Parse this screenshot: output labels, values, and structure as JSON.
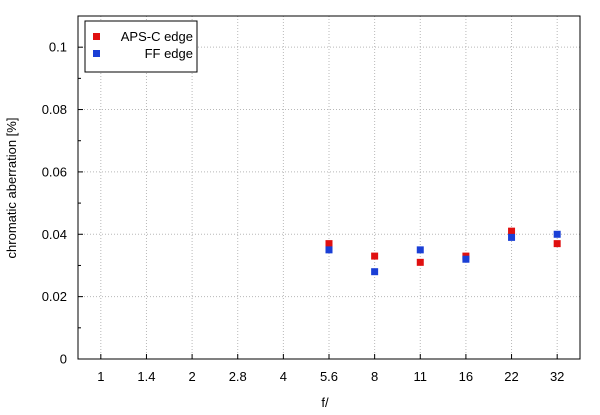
{
  "chart_data": {
    "type": "scatter",
    "title": "",
    "xlabel": "f/",
    "ylabel": "chromatic aberration [%]",
    "categories": [
      "1",
      "1.4",
      "2",
      "2.8",
      "4",
      "5.6",
      "8",
      "11",
      "16",
      "22",
      "32"
    ],
    "ylim": [
      0,
      0.11
    ],
    "yticks": [
      0,
      0.02,
      0.04,
      0.06,
      0.08,
      0.1
    ],
    "ytick_labels": [
      "0",
      "0.02",
      "0.04",
      "0.06",
      "0.08",
      "0.1"
    ],
    "grid": true,
    "legend_position": "top-left",
    "series": [
      {
        "name": "APS-C edge",
        "color": "#e01010",
        "points": [
          {
            "x": "5.6",
            "y": 0.037
          },
          {
            "x": "8",
            "y": 0.033
          },
          {
            "x": "11",
            "y": 0.031
          },
          {
            "x": "16",
            "y": 0.033
          },
          {
            "x": "22",
            "y": 0.041
          },
          {
            "x": "32",
            "y": 0.037
          }
        ]
      },
      {
        "name": "FF edge",
        "color": "#1a3fd6",
        "points": [
          {
            "x": "5.6",
            "y": 0.035
          },
          {
            "x": "8",
            "y": 0.028
          },
          {
            "x": "11",
            "y": 0.035
          },
          {
            "x": "16",
            "y": 0.032
          },
          {
            "x": "22",
            "y": 0.039
          },
          {
            "x": "32",
            "y": 0.04
          }
        ]
      }
    ]
  }
}
